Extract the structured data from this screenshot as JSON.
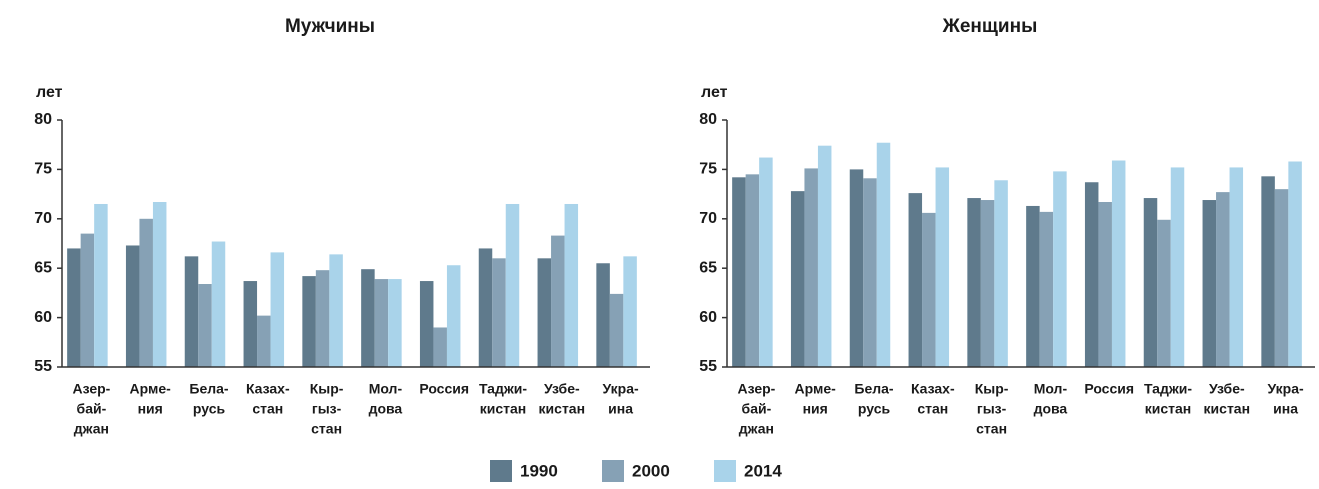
{
  "chart_data": [
    {
      "type": "bar",
      "title": "Мужчины",
      "y_label": "лет",
      "ylim": [
        55,
        80
      ],
      "yticks": [
        55,
        60,
        65,
        70,
        75,
        80
      ],
      "categories": [
        [
          "Азер-",
          "бай-",
          "джан"
        ],
        [
          "Арме-",
          "ния"
        ],
        [
          "Бела-",
          "русь"
        ],
        [
          "Казах-",
          "стан"
        ],
        [
          "Кыр-",
          "гыз-",
          "стан"
        ],
        [
          "Мол-",
          "дова"
        ],
        [
          "Россия"
        ],
        [
          "Таджи-",
          "кистан"
        ],
        [
          "Узбе-",
          "кистан"
        ],
        [
          "Укра-",
          "ина"
        ]
      ],
      "series": [
        {
          "values": [
            67.0,
            67.3,
            66.2,
            63.7,
            64.2,
            64.9,
            63.7,
            67.0,
            66.0,
            65.5
          ]
        },
        {
          "values": [
            68.5,
            70.0,
            63.4,
            60.2,
            64.8,
            63.9,
            59.0,
            66.0,
            68.3,
            62.4
          ]
        },
        {
          "values": [
            71.5,
            71.7,
            67.7,
            66.6,
            66.4,
            63.9,
            65.3,
            71.5,
            71.5,
            66.2
          ]
        }
      ]
    },
    {
      "type": "bar",
      "title": "Женщины",
      "y_label": "лет",
      "ylim": [
        55,
        80
      ],
      "yticks": [
        55,
        60,
        65,
        70,
        75,
        80
      ],
      "categories": [
        [
          "Азер-",
          "бай-",
          "джан"
        ],
        [
          "Арме-",
          "ния"
        ],
        [
          "Бела-",
          "русь"
        ],
        [
          "Казах-",
          "стан"
        ],
        [
          "Кыр-",
          "гыз-",
          "стан"
        ],
        [
          "Мол-",
          "дова"
        ],
        [
          "Россия"
        ],
        [
          "Таджи-",
          "кистан"
        ],
        [
          "Узбе-",
          "кистан"
        ],
        [
          "Укра-",
          "ина"
        ]
      ],
      "series": [
        {
          "values": [
            74.2,
            72.8,
            75.0,
            72.6,
            72.1,
            71.3,
            73.7,
            72.1,
            71.9,
            74.3
          ]
        },
        {
          "values": [
            74.5,
            75.1,
            74.1,
            70.6,
            71.9,
            70.7,
            71.7,
            69.9,
            72.7,
            73.0
          ]
        },
        {
          "values": [
            76.2,
            77.4,
            77.7,
            75.2,
            73.9,
            74.8,
            75.9,
            75.2,
            75.2,
            75.8
          ]
        }
      ]
    }
  ],
  "legend": {
    "items": [
      {
        "name": "1990",
        "color": "#5f7a8c"
      },
      {
        "name": "2000",
        "color": "#86a1b5"
      },
      {
        "name": "2014",
        "color": "#a9d3ea"
      }
    ]
  }
}
